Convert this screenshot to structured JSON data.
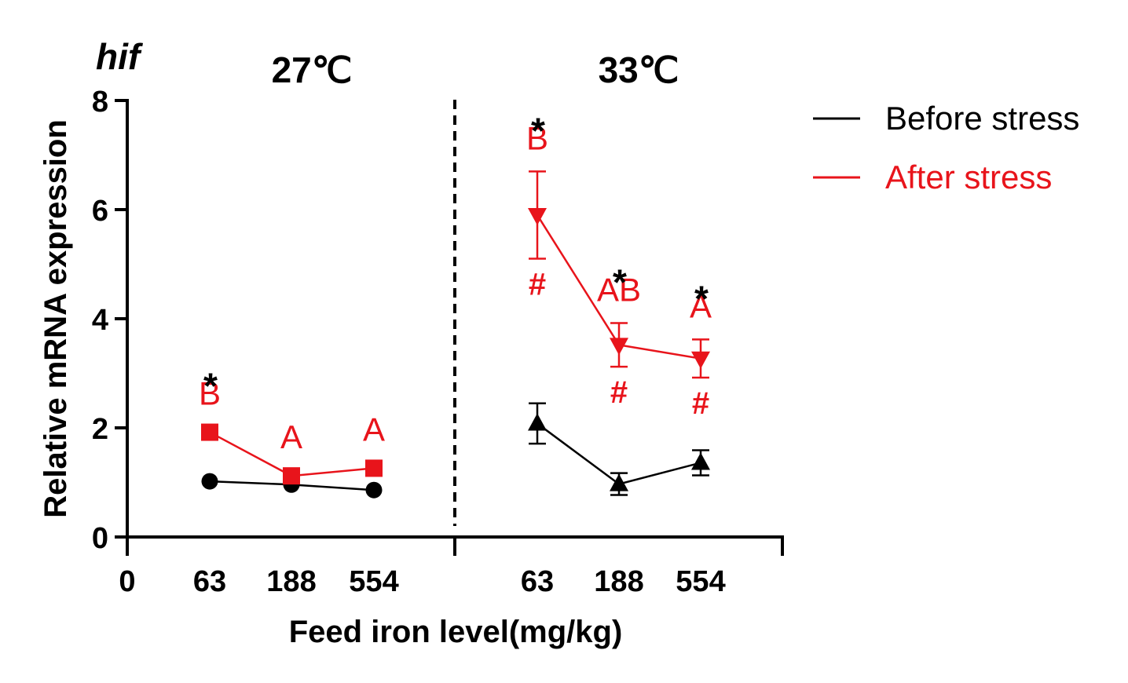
{
  "chart_data": {
    "type": "line",
    "gene_label": "hif",
    "panel_titles": [
      "27℃",
      "33℃"
    ],
    "xlabel": "Feed iron level(mg/kg)",
    "ylabel": "Relative mRNA expression",
    "ylim": [
      0,
      8
    ],
    "y_ticks": [
      "0",
      "2",
      "4",
      "6",
      "8"
    ],
    "x_origin_label": "0",
    "categories": [
      "63",
      "188",
      "554"
    ],
    "legend_placement": "top-right",
    "colors": {
      "before": "#000000",
      "after": "#e8141b"
    },
    "panels": [
      {
        "title": "27℃",
        "series": [
          {
            "name": "Before stress",
            "marker": "circle",
            "values": [
              1.02,
              0.96,
              0.86
            ],
            "errors": [
              0.03,
              0.03,
              0.03
            ]
          },
          {
            "name": "After stress",
            "marker": "square",
            "values": [
              1.92,
              1.12,
              1.26
            ],
            "errors": [
              0.05,
              0.05,
              0.05
            ]
          }
        ],
        "letters": [
          "B",
          "A",
          "A"
        ],
        "stars": [
          "*",
          "",
          ""
        ],
        "hashes": [
          "",
          "",
          ""
        ]
      },
      {
        "title": "33℃",
        "series": [
          {
            "name": "Before stress",
            "marker": "triangle-up",
            "values": [
              2.08,
              0.97,
              1.36
            ],
            "errors": [
              0.37,
              0.2,
              0.23
            ]
          },
          {
            "name": "After stress",
            "marker": "triangle-down",
            "values": [
              5.9,
              3.52,
              3.27
            ],
            "errors": [
              0.8,
              0.4,
              0.35
            ]
          }
        ],
        "letters": [
          "B",
          "AB",
          "A"
        ],
        "stars": [
          "*",
          "*",
          "*"
        ],
        "hashes": [
          "#",
          "#",
          "#"
        ]
      }
    ]
  }
}
